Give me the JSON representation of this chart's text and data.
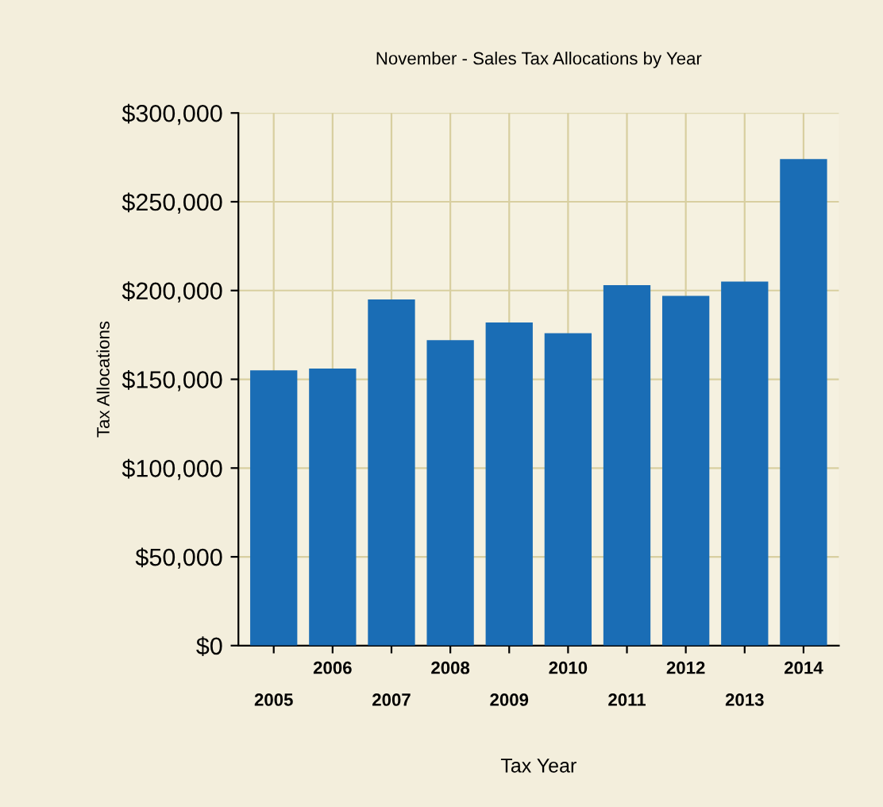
{
  "chart_data": {
    "type": "bar",
    "title": "November - Sales Tax Allocations by Year",
    "xlabel": "Tax Year",
    "ylabel": "Tax Allocations",
    "categories": [
      "2005",
      "2006",
      "2007",
      "2008",
      "2009",
      "2010",
      "2011",
      "2012",
      "2013",
      "2014"
    ],
    "values": [
      155000,
      156000,
      195000,
      172000,
      182000,
      176000,
      203000,
      197000,
      205000,
      274000
    ],
    "color": "#1a6db5",
    "ylim": [
      0,
      300000
    ],
    "yticks": [
      {
        "value": 0,
        "label": "$0"
      },
      {
        "value": 50000,
        "label": "$50,000"
      },
      {
        "value": 100000,
        "label": "$100,000"
      },
      {
        "value": 150000,
        "label": "$150,000"
      },
      {
        "value": 200000,
        "label": "$200,000"
      },
      {
        "value": 250000,
        "label": "$250,000"
      },
      {
        "value": 300000,
        "label": "$300,000"
      }
    ],
    "grid": true
  }
}
